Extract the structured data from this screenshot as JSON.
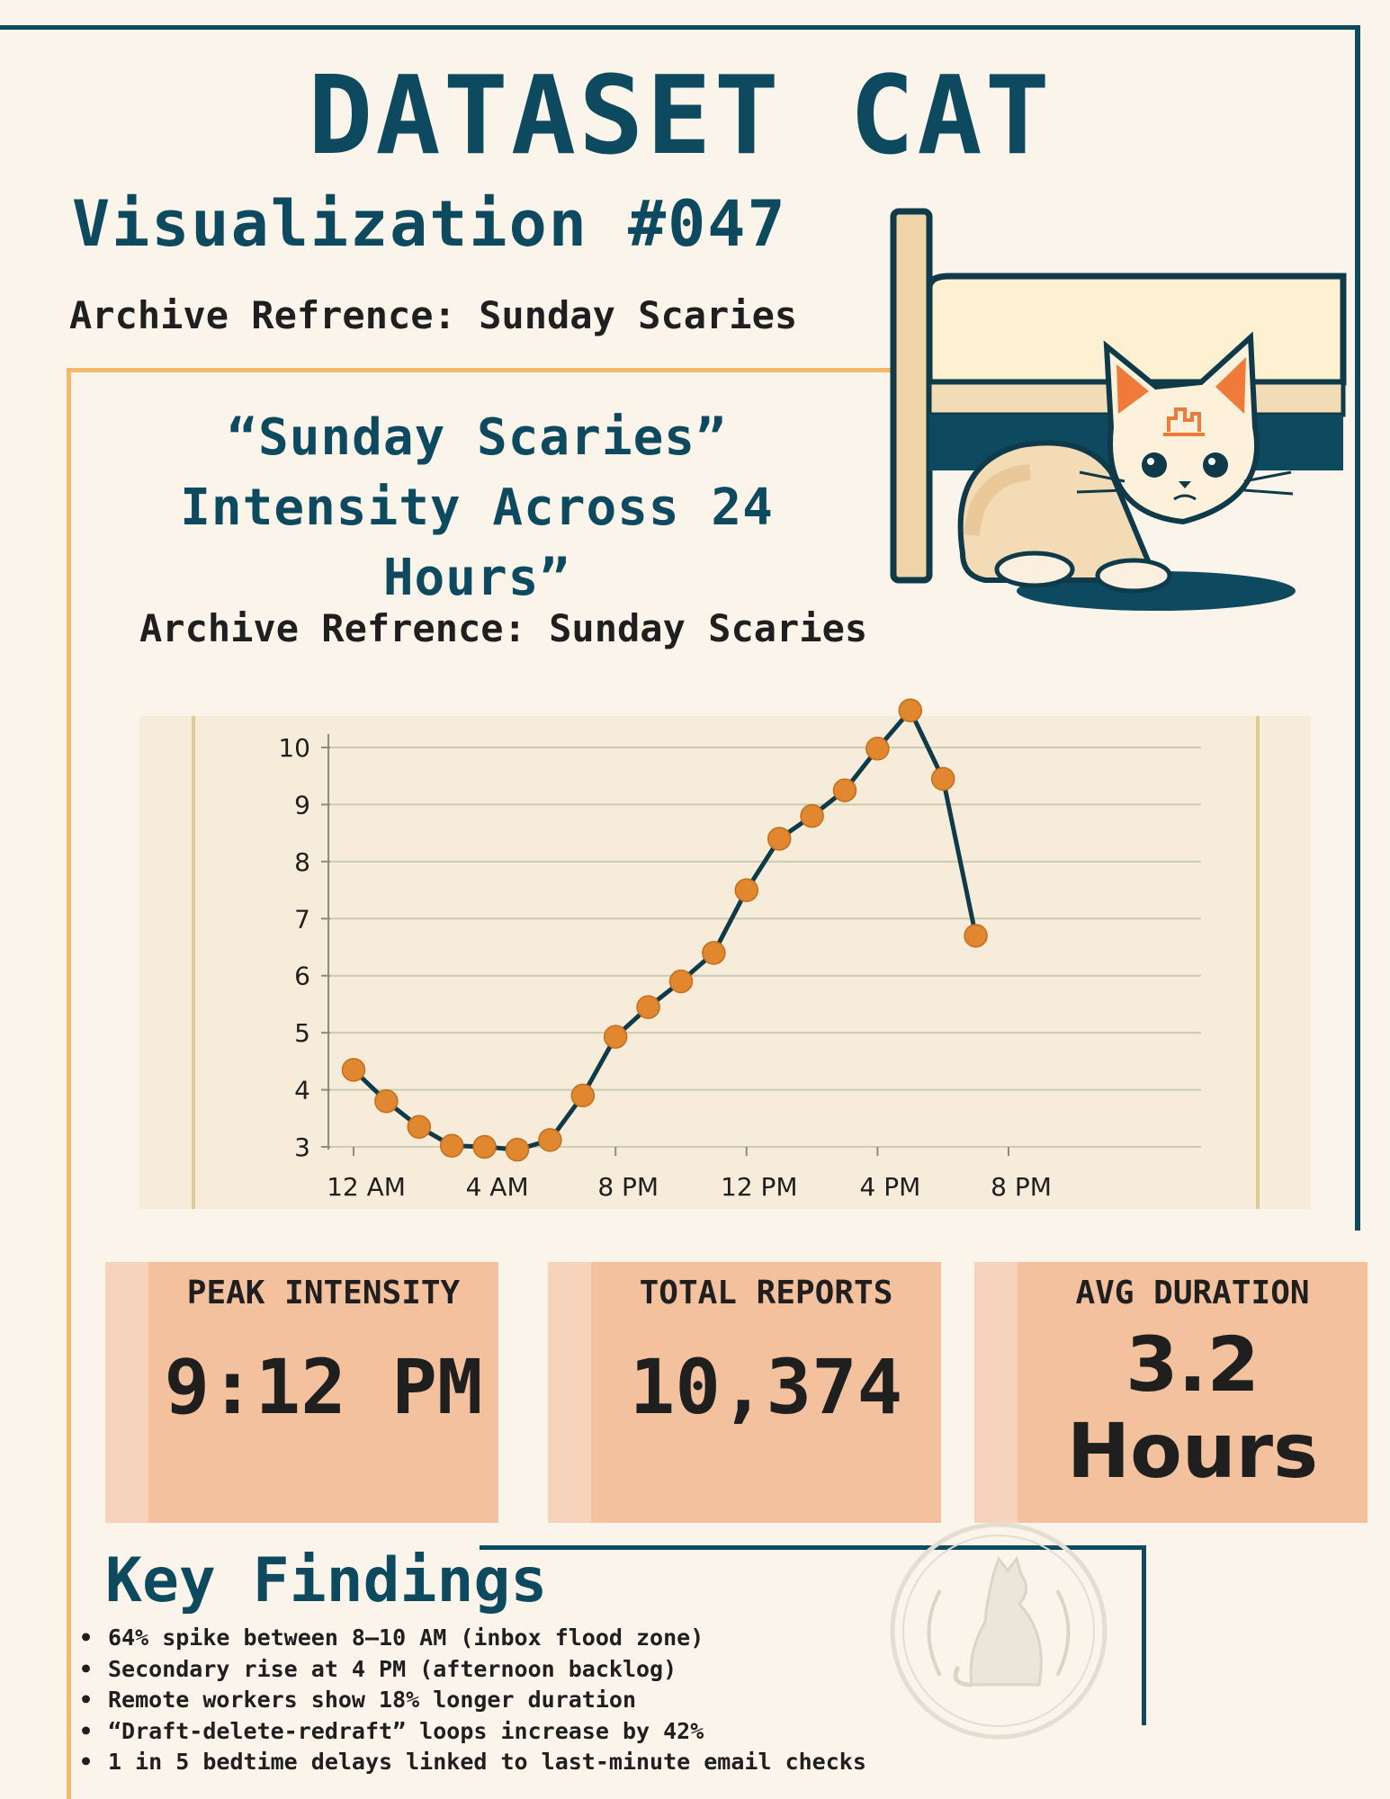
{
  "header": {
    "title": "DATASET CAT",
    "visualization": "Visualization #047",
    "archive_ref": "Archive Refrence: Sunday Scaries"
  },
  "chart_data": {
    "type": "line",
    "title": "“Sunday Scaries” Intensity Across 24 Hours”",
    "subtitle": "Archive Refrence: Sunday Scaries",
    "xlabel": "",
    "ylabel": "",
    "x_tick_labels": [
      "12 AM",
      "4 AM",
      "8 PM",
      "12 PM",
      "4 PM",
      "8 PM"
    ],
    "y_ticks": [
      3,
      4,
      5,
      6,
      7,
      8,
      9,
      10
    ],
    "ylim": [
      3,
      10
    ],
    "grid": true,
    "series": [
      {
        "x": [
          0,
          1,
          2,
          3,
          4,
          5,
          6,
          7,
          8,
          9,
          10,
          11,
          12,
          13,
          14,
          15,
          16,
          17,
          18,
          19
        ],
        "values": [
          4.35,
          3.8,
          3.35,
          3.02,
          3.0,
          2.95,
          3.12,
          3.9,
          4.93,
          5.45,
          5.9,
          6.4,
          7.5,
          8.4,
          8.8,
          9.25,
          9.98,
          10.65,
          9.45,
          6.7
        ]
      }
    ],
    "colors": {
      "line": "#0e3a4a",
      "marker": "#e0872f",
      "grid": "#c9ccb0"
    }
  },
  "stats": [
    {
      "label": "PEAK INTENSITY",
      "value": "9:12 PM"
    },
    {
      "label": "TOTAL REPORTS",
      "value": "10,374"
    },
    {
      "label": "AVG DURATION",
      "value": "3.2\nHours"
    }
  ],
  "key_findings": {
    "title": "Key Findings",
    "items": [
      "64% spike between 8–10 AM (inbox flood zone)",
      "Secondary rise at 4 PM (afternoon backlog)",
      "Remote workers show 18% longer duration",
      "“Draft-delete-redraft” loops increase by 42%",
      "1 in 5 bedtime delays linked to last-minute email checks"
    ]
  },
  "colors": {
    "primary": "#0e4a5f",
    "accent": "#f3b868",
    "card": "#f4c19f",
    "background": "#fbf4ea"
  },
  "icons": [
    "cat-under-bed-illustration",
    "cat-seal-watermark"
  ]
}
